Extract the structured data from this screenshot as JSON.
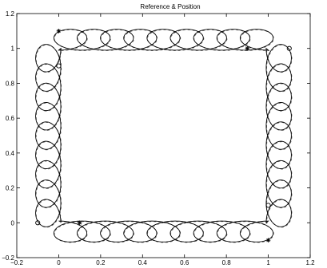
{
  "chart_data": {
    "type": "line",
    "title": "Reference & Position",
    "xlabel": "",
    "ylabel": "",
    "xlim": [
      -0.2,
      1.2
    ],
    "ylim": [
      -0.2,
      1.2
    ],
    "xticks": [
      -0.2,
      0,
      0.2,
      0.4,
      0.6,
      0.8,
      1,
      1.2
    ],
    "xtick_labels": [
      "−0.2",
      "0",
      "0.2",
      "0.4",
      "0.6",
      "0.8",
      "1",
      "1.2"
    ],
    "yticks": [
      -0.2,
      0,
      0.2,
      0.4,
      0.6,
      0.8,
      1,
      1.2
    ],
    "ytick_labels": [
      "−0.2",
      "0",
      "0.2",
      "0.4",
      "0.6",
      "0.8",
      "1",
      "1.2"
    ],
    "grid": false,
    "legend": "none",
    "series": [
      {
        "style": "solid",
        "color": "#000000",
        "description": "looping path around square",
        "path_model": {
          "edges": [
            {
              "from": [
                0.0,
                0.0
              ],
              "to": [
                1.0,
                0.0
              ],
              "loops": 9,
              "outward": [
                0,
                -1
              ]
            },
            {
              "from": [
                1.0,
                0.0
              ],
              "to": [
                1.0,
                1.0
              ],
              "loops": 9,
              "outward": [
                1,
                0
              ]
            },
            {
              "from": [
                1.0,
                1.0
              ],
              "to": [
                0.0,
                1.0
              ],
              "loops": 9,
              "outward": [
                0,
                1
              ]
            },
            {
              "from": [
                0.0,
                1.0
              ],
              "to": [
                0.0,
                0.0
              ],
              "loops": 9,
              "outward": [
                -1,
                0
              ]
            }
          ],
          "loop_radius": 0.1
        }
      },
      {
        "style": "dashed",
        "color": "#000000",
        "description": "reference path (overlaid)"
      }
    ],
    "markers": [
      {
        "shape": "star",
        "x": 0.0,
        "y": 1.1
      },
      {
        "shape": "circle",
        "x": 0.0,
        "y": 0.9
      },
      {
        "shape": "star",
        "x": 0.1,
        "y": 0.0
      },
      {
        "shape": "circle",
        "x": -0.1,
        "y": 0.0
      },
      {
        "shape": "star",
        "x": 1.0,
        "y": -0.1
      },
      {
        "shape": "circle",
        "x": 1.0,
        "y": 0.1
      },
      {
        "shape": "star",
        "x": 0.9,
        "y": 1.0
      },
      {
        "shape": "circle",
        "x": 1.1,
        "y": 1.0
      }
    ]
  }
}
